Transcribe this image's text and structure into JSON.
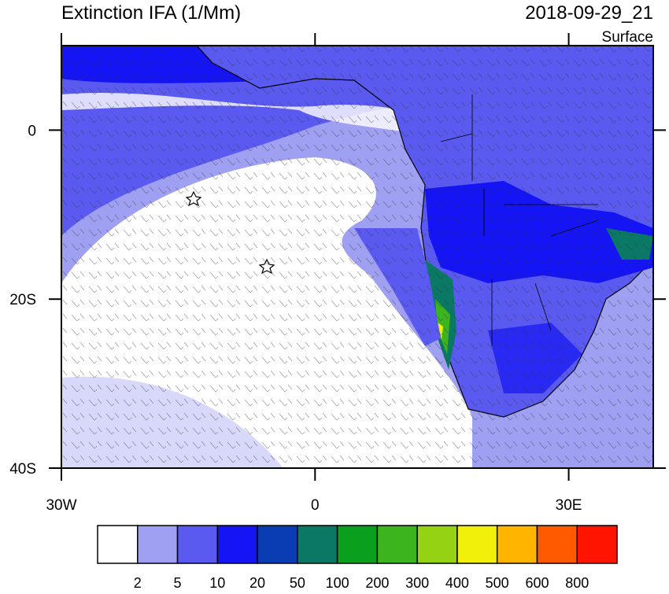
{
  "header": {
    "title": "Extinction IFA (1/Mm)",
    "date": "2018-09-29_21",
    "level": "Surface"
  },
  "axes": {
    "xlim": [
      -30,
      40
    ],
    "ylim": [
      -40,
      10
    ],
    "xticks": [
      {
        "value": -30,
        "label": "30W"
      },
      0,
      {
        "value": 30,
        "label": "30E"
      }
    ],
    "yticks": [
      0,
      {
        "value": -20,
        "label": "20S"
      },
      {
        "value": -40,
        "label": "40S"
      }
    ]
  },
  "colorbar": {
    "colors": [
      "#ffffff",
      "#a0a0f2",
      "#5a5af0",
      "#1414f5",
      "#0a3cb4",
      "#0a7864",
      "#0aa01e",
      "#3cb41e",
      "#96d214",
      "#f0f00a",
      "#ffb400",
      "#ff5a00",
      "#ff1400"
    ],
    "labels": [
      2,
      5,
      10,
      20,
      50,
      100,
      200,
      300,
      400,
      500,
      600,
      800
    ]
  }
}
